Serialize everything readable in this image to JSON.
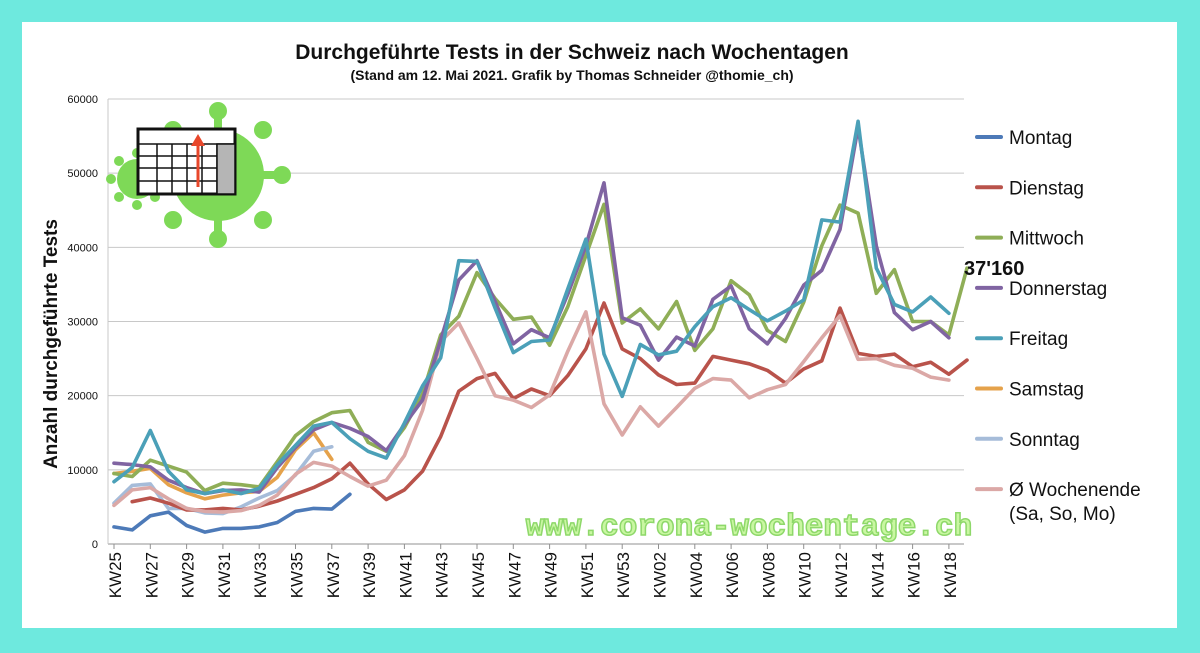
{
  "colors": {
    "frame": "#6ee9de",
    "grid": "#c8c8c8",
    "axis": "#909090",
    "watermark_fill": "#c9f7a2",
    "watermark_stroke": "#8ed86a",
    "virus": "#7ed957",
    "arrow": "#e8472b"
  },
  "watermark": "www.corona-wochentage.ch",
  "callout": "37'160",
  "chart_data": {
    "type": "line",
    "title": "Durchgeführte Tests in der Schweiz nach Wochentagen",
    "subtitle": "(Stand am 12. Mai 2021. Grafik by Thomas Schneider @thomie_ch)",
    "ylabel": "Anzahl durchgeführte Tests",
    "xlabel": "",
    "ylim": [
      0,
      60000
    ],
    "yticks": [
      0,
      10000,
      20000,
      30000,
      40000,
      50000,
      60000
    ],
    "ytick_labels": [
      "0",
      "10000",
      "20000",
      "30000",
      "40000",
      "50000",
      "60000"
    ],
    "grid": true,
    "legend_position": "right",
    "categories": [
      "KW25",
      "KW26",
      "KW27",
      "KW28",
      "KW29",
      "KW30",
      "KW31",
      "KW32",
      "KW33",
      "KW34",
      "KW35",
      "KW36",
      "KW37",
      "KW38",
      "KW39",
      "KW40",
      "KW41",
      "KW42",
      "KW43",
      "KW44",
      "KW45",
      "KW46",
      "KW47",
      "KW48",
      "KW49",
      "KW50",
      "KW51",
      "KW52",
      "KW53",
      "KW01",
      "KW02",
      "KW03",
      "KW04",
      "KW05",
      "KW06",
      "KW07",
      "KW08",
      "KW09",
      "KW10",
      "KW11",
      "KW12",
      "KW13",
      "KW14",
      "KW15",
      "KW16",
      "KW17",
      "KW18",
      "KW19"
    ],
    "tick_labels": [
      "KW25",
      "KW27",
      "KW29",
      "KW31",
      "KW33",
      "KW35",
      "KW37",
      "KW39",
      "KW41",
      "KW43",
      "KW45",
      "KW47",
      "KW49",
      "KW51",
      "KW53",
      "KW02",
      "KW04",
      "KW06",
      "KW08",
      "KW10",
      "KW12",
      "KW14",
      "KW16",
      "KW18"
    ],
    "series": [
      {
        "name": "Montag",
        "color": "#4d7ab8",
        "values": [
          2300,
          1900,
          3800,
          4300,
          2500,
          1600,
          2100,
          2100,
          2300,
          2900,
          4400,
          4800,
          4700,
          6700,
          null,
          null,
          null,
          null,
          null,
          null,
          null,
          null,
          null,
          null,
          null,
          null,
          null,
          null,
          null,
          null,
          null,
          null,
          null,
          null,
          null,
          null,
          null,
          null,
          null,
          null,
          null,
          null,
          null,
          null,
          null,
          null,
          null,
          null
        ]
      },
      {
        "name": "Dienstag",
        "color": "#b9534b",
        "values": [
          null,
          5700,
          6200,
          5500,
          4600,
          4600,
          4800,
          4600,
          5100,
          5800,
          6700,
          7600,
          8800,
          10900,
          8100,
          6000,
          7300,
          9800,
          14500,
          20600,
          22300,
          23000,
          19600,
          20900,
          20000,
          22700,
          26300,
          32500,
          26300,
          25000,
          22800,
          21500,
          21700,
          25300,
          24800,
          24300,
          23400,
          21700,
          23600,
          24700,
          31800,
          25700,
          25300,
          25600,
          23900,
          24500,
          22900,
          24800
        ]
      },
      {
        "name": "Mittwoch",
        "color": "#8fae57",
        "values": [
          9500,
          9100,
          11300,
          10500,
          9700,
          7200,
          8200,
          8000,
          7700,
          11100,
          14600,
          16500,
          17700,
          18000,
          13700,
          12500,
          15700,
          20200,
          28200,
          30700,
          36600,
          33100,
          30300,
          30600,
          26800,
          32000,
          38900,
          45800,
          29800,
          31700,
          29000,
          32700,
          26100,
          29000,
          35500,
          33600,
          28800,
          27300,
          32600,
          40200,
          45700,
          44600,
          33800,
          37000,
          30000,
          30000,
          28200,
          37200
        ]
      },
      {
        "name": "Donnerstag",
        "color": "#8064a2",
        "values": [
          10900,
          10700,
          10400,
          8600,
          7600,
          6800,
          7200,
          7300,
          7000,
          10300,
          13000,
          15400,
          16400,
          15600,
          14500,
          12600,
          16100,
          19400,
          27500,
          35600,
          38200,
          32700,
          27000,
          28900,
          27800,
          33700,
          40200,
          48700,
          30500,
          29500,
          24800,
          27900,
          26700,
          33000,
          34800,
          29000,
          27000,
          30400,
          34900,
          36900,
          42400,
          56200,
          40200,
          31200,
          28900,
          30000,
          27800,
          null
        ]
      },
      {
        "name": "Freitag",
        "color": "#4ba0b8",
        "values": [
          8400,
          10300,
          15300,
          9800,
          7300,
          6800,
          7300,
          6800,
          7500,
          10700,
          13300,
          15900,
          16400,
          14200,
          12500,
          11600,
          16300,
          21300,
          25100,
          38200,
          38100,
          31800,
          25800,
          27300,
          27500,
          34400,
          41100,
          25600,
          19900,
          26900,
          25500,
          26000,
          29300,
          32000,
          33200,
          31600,
          30100,
          31400,
          32900,
          43700,
          43400,
          57000,
          37200,
          32300,
          31300,
          33300,
          31100,
          null
        ]
      },
      {
        "name": "Samstag",
        "color": "#e5a24b",
        "values": [
          9500,
          9800,
          10200,
          8000,
          6900,
          6100,
          6600,
          6900,
          7100,
          9000,
          12700,
          15000,
          11400,
          null,
          null,
          null,
          null,
          null,
          null,
          null,
          null,
          null,
          null,
          null,
          null,
          null,
          null,
          null,
          null,
          null,
          null,
          null,
          null,
          null,
          null,
          null,
          null,
          null,
          null,
          null,
          null,
          null,
          null,
          null,
          null,
          null,
          null,
          null
        ]
      },
      {
        "name": "Sonntag",
        "color": "#a6bcd9",
        "values": [
          5500,
          7900,
          8100,
          4800,
          4800,
          4200,
          4100,
          5000,
          6200,
          7200,
          9300,
          12500,
          13100,
          null,
          null,
          null,
          null,
          null,
          null,
          null,
          null,
          null,
          null,
          null,
          null,
          null,
          null,
          null,
          null,
          null,
          null,
          null,
          null,
          null,
          null,
          null,
          null,
          null,
          null,
          null,
          null,
          null,
          null,
          null,
          null,
          null,
          null,
          null
        ]
      },
      {
        "name": "Ø Wochenende\n(Sa, So, Mo)",
        "color": "#dba8a6",
        "values": [
          5200,
          7300,
          7600,
          6100,
          4800,
          4400,
          4300,
          4500,
          5200,
          6600,
          9400,
          11000,
          10500,
          9100,
          7800,
          8600,
          11900,
          18000,
          27300,
          29800,
          25000,
          20000,
          19400,
          18400,
          20100,
          26000,
          31300,
          18900,
          14700,
          18500,
          15900,
          18400,
          21000,
          22300,
          22100,
          19700,
          20800,
          21500,
          24600,
          27800,
          30800,
          24900,
          25000,
          24100,
          23700,
          22500,
          22100,
          null
        ]
      }
    ]
  }
}
